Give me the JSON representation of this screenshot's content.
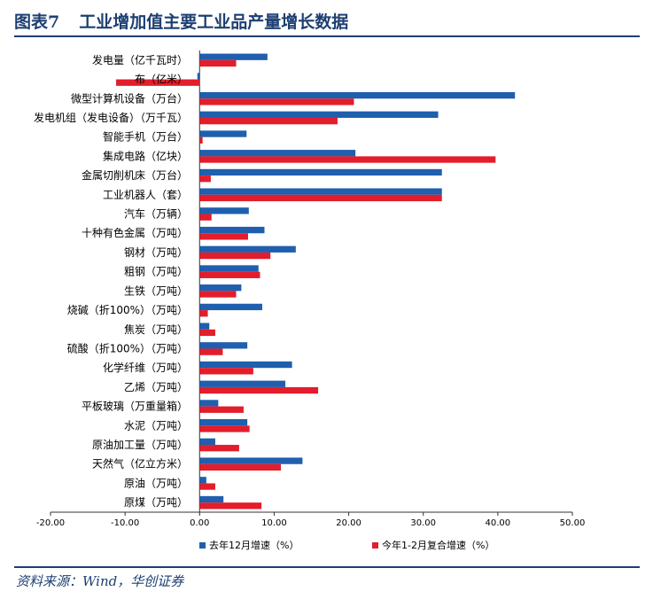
{
  "figure": {
    "number": "图表7",
    "title": "工业增加值主要工业品产量增长数据",
    "source": "资料来源：Wind，华创证券"
  },
  "colors": {
    "series1": "#1f5fae",
    "series2": "#e31d2b",
    "axis": "#333333",
    "brand": "#1d3f72"
  },
  "chart_data": {
    "type": "bar",
    "orientation": "horizontal",
    "categories": [
      "发电量（亿千瓦时）",
      "布（亿米）",
      "微型计算机设备（万台）",
      "发电机组（发电设备）（万千瓦）",
      "智能手机（万台）",
      "集成电路（亿块）",
      "金属切削机床（万台）",
      "工业机器人（套）",
      "汽车（万辆）",
      "十种有色金属（万吨）",
      "钢材（万吨）",
      "粗钢（万吨）",
      "生铁（万吨）",
      "烧碱（折100%）（万吨）",
      "焦炭（万吨）",
      "硫酸（折100%）（万吨）",
      "化学纤维（万吨）",
      "乙烯（万吨）",
      "平板玻璃（万重量箱）",
      "水泥（万吨）",
      "原油加工量（万吨）",
      "天然气（亿立方米）",
      "原油（万吨）",
      "原煤（万吨）"
    ],
    "series": [
      {
        "name": "去年12月增速（%）",
        "values": [
          9.1,
          -0.3,
          42.3,
          32.0,
          6.3,
          20.9,
          32.5,
          32.5,
          6.6,
          8.7,
          12.9,
          7.9,
          5.6,
          8.4,
          1.3,
          6.4,
          12.4,
          11.5,
          2.5,
          6.4,
          2.1,
          13.8,
          0.9,
          3.2
        ]
      },
      {
        "name": "今年1-2月复合增速（%）",
        "values": [
          4.9,
          -11.2,
          20.7,
          18.5,
          0.4,
          39.7,
          1.5,
          32.5,
          1.6,
          6.5,
          9.5,
          8.1,
          4.9,
          1.1,
          2.1,
          3.1,
          7.2,
          15.9,
          5.9,
          6.7,
          5.3,
          10.9,
          2.1,
          8.3
        ]
      }
    ],
    "xlim": [
      -20,
      50
    ],
    "xticks": [
      "-20.00",
      "-10.00",
      "0.00",
      "10.00",
      "20.00",
      "30.00",
      "40.00",
      "50.00"
    ],
    "xtick_values": [
      -20,
      -10,
      0,
      10,
      20,
      30,
      40,
      50
    ],
    "legend_position": "bottom"
  }
}
